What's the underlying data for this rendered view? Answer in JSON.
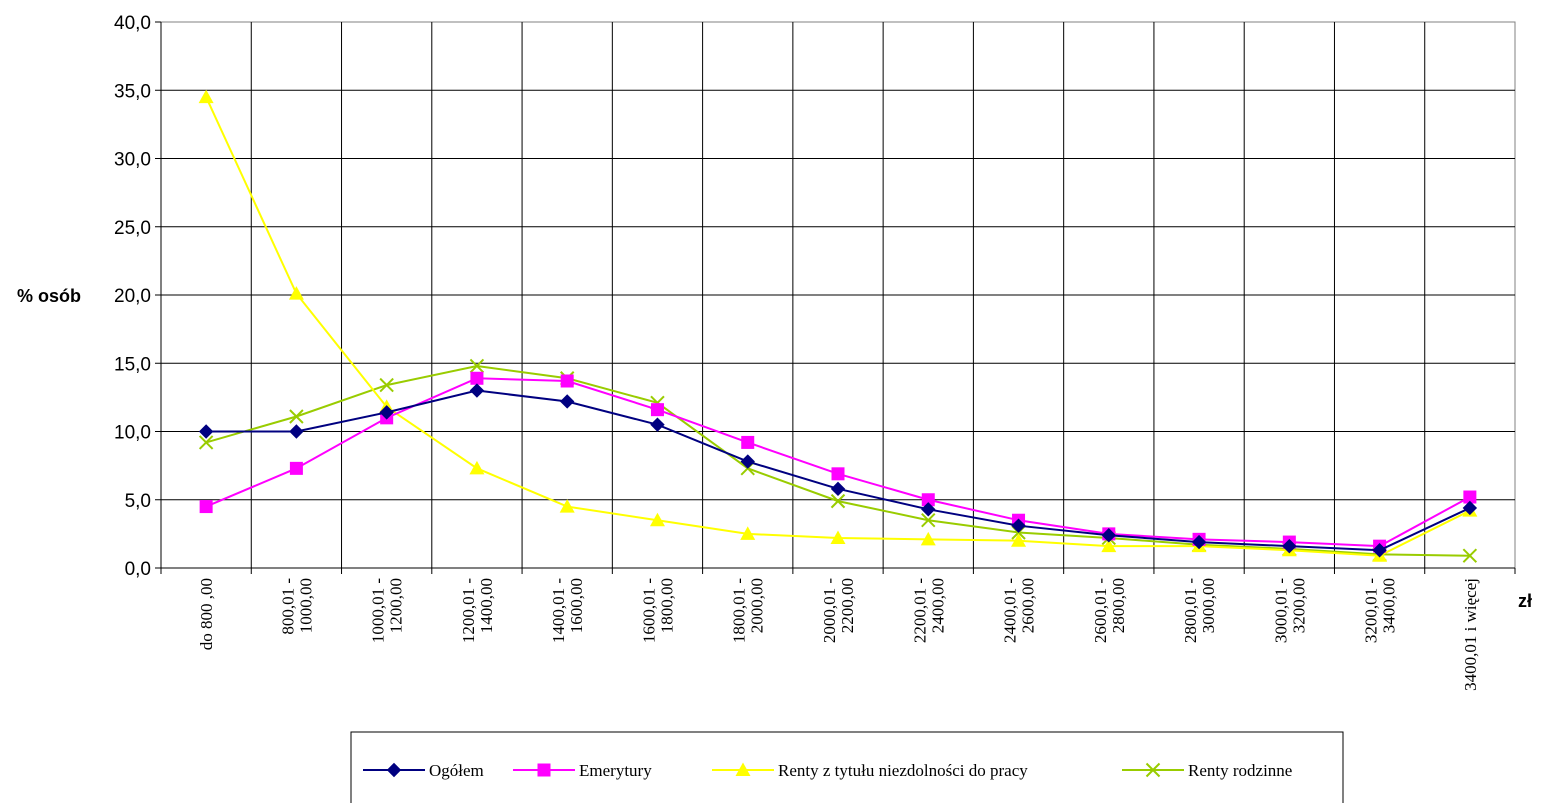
{
  "chart_data": {
    "type": "line",
    "title": "",
    "ylabel": "% osób",
    "xlabel": "zł",
    "ylim": [
      0,
      40
    ],
    "yticks": [
      "0,0",
      "5,0",
      "10,0",
      "15,0",
      "20,0",
      "25,0",
      "30,0",
      "35,0",
      "40,0"
    ],
    "grid": true,
    "legend_position": "bottom",
    "categories": [
      [
        "do 800 ,00"
      ],
      [
        "800,01 -",
        "1000,00"
      ],
      [
        "1000,01 -",
        "1200,00"
      ],
      [
        "1200,01 -",
        "1400,00"
      ],
      [
        "1400,01 -",
        "1600,00"
      ],
      [
        "1600,01 -",
        "1800,00"
      ],
      [
        "1800,01 -",
        "2000,00"
      ],
      [
        "2000,01 -",
        "2200,00"
      ],
      [
        "2200,01 -",
        "2400,00"
      ],
      [
        "2400,01 -",
        "2600,00"
      ],
      [
        "2600,01 -",
        "2800,00"
      ],
      [
        "2800,01 -",
        "3000,00"
      ],
      [
        "3000,01 -",
        "3200,00"
      ],
      [
        "3200,01 -",
        "3400,00"
      ],
      [
        "3400,01 i więcej"
      ]
    ],
    "series": [
      {
        "name": "Ogółem",
        "color": "#000080",
        "marker": "diamond",
        "values": [
          10.0,
          10.0,
          11.4,
          13.0,
          12.2,
          10.5,
          7.8,
          5.8,
          4.3,
          3.1,
          2.4,
          1.9,
          1.6,
          1.3,
          4.4
        ]
      },
      {
        "name": "Emerytury",
        "color": "#ff00ff",
        "marker": "square",
        "values": [
          4.5,
          7.3,
          11.0,
          13.9,
          13.7,
          11.6,
          9.2,
          6.9,
          5.0,
          3.5,
          2.5,
          2.1,
          1.9,
          1.6,
          5.2
        ]
      },
      {
        "name": "Renty z tytułu niezdolności do pracy",
        "color": "#ffff00",
        "marker": "triangle",
        "values": [
          34.5,
          20.1,
          11.8,
          7.3,
          4.5,
          3.5,
          2.5,
          2.2,
          2.1,
          2.0,
          1.6,
          1.6,
          1.3,
          0.9,
          4.2
        ]
      },
      {
        "name": "Renty rodzinne",
        "color": "#99cc00",
        "marker": "x",
        "values": [
          9.2,
          11.1,
          13.4,
          14.8,
          13.9,
          12.1,
          7.3,
          4.9,
          3.5,
          2.6,
          2.2,
          1.7,
          1.4,
          1.0,
          0.9
        ]
      }
    ]
  }
}
